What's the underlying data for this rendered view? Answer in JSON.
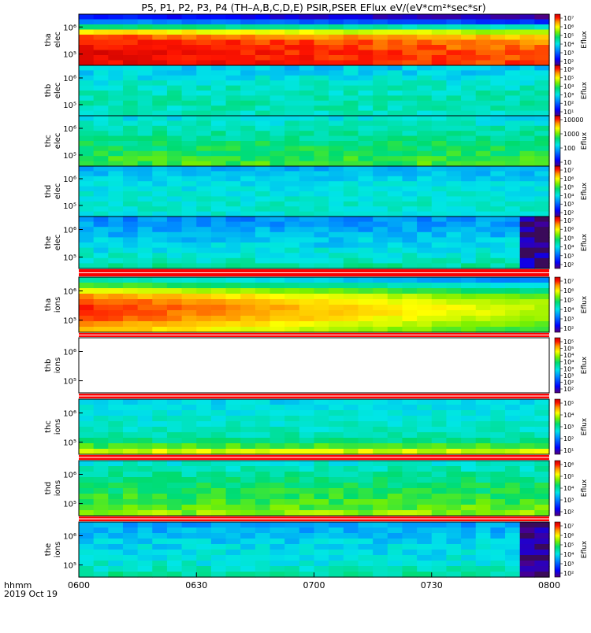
{
  "title": "P5, P1, P2, P3, P4 (TH–A,B,C,D,E) PSIR,PSER EFlux eV/(eV*cm²*sec*sr)",
  "xaxis": {
    "unit_label": "hhmm",
    "date_label": "2019 Oct 19",
    "ticks": [
      "0600",
      "0630",
      "0700",
      "0730",
      "0800"
    ],
    "range_min": [
      0,
      120
    ]
  },
  "colorbar_label": "Eflux",
  "colors": {
    "saturation_red": "#ff0000",
    "background": "#ffffff",
    "noise_purple": "#3a0a5a"
  },
  "chart_data": [
    {
      "type": "heatmap",
      "probe": "tha",
      "species": "elec",
      "ylabel_top": "tha",
      "ylabel_bottom": "elec",
      "yticks": [
        "10⁶",
        "10⁵"
      ],
      "cbar_ticks": [
        "10⁷",
        "10⁶",
        "10⁵",
        "10⁴",
        "10³",
        "10²"
      ],
      "profile": [
        0.15,
        0.3,
        0.55,
        0.78,
        0.9,
        0.94,
        0.95,
        0.96,
        0.96,
        0.96
      ],
      "trend": -0.12,
      "bottom_trend": 0.0,
      "noise": 0.03
    },
    {
      "type": "heatmap",
      "probe": "thb",
      "species": "elec",
      "ylabel_top": "thb",
      "ylabel_bottom": "elec",
      "yticks": [
        "10⁶",
        "10⁵"
      ],
      "cbar_ticks": [
        "10⁶",
        "10⁵",
        "10⁴",
        "10³",
        "10²",
        "10¹"
      ],
      "profile": [
        0.38,
        0.4,
        0.42,
        0.44,
        0.46,
        0.47,
        0.48,
        0.48,
        0.47,
        0.46
      ],
      "trend": 0.0,
      "bottom_trend": 0.0,
      "noise": 0.05
    },
    {
      "type": "heatmap",
      "probe": "thc",
      "species": "elec",
      "ylabel_top": "thc",
      "ylabel_bottom": "elec",
      "yticks": [
        "10⁶",
        "10⁵"
      ],
      "cbar_ticks": [
        "10000",
        "1000",
        "100",
        "10"
      ],
      "profile": [
        0.42,
        0.45,
        0.48,
        0.5,
        0.52,
        0.54,
        0.55,
        0.57,
        0.58,
        0.6
      ],
      "trend": 0.0,
      "bottom_trend": 0.0,
      "noise": 0.05
    },
    {
      "type": "heatmap",
      "probe": "thd",
      "species": "elec",
      "ylabel_top": "thd",
      "ylabel_bottom": "elec",
      "yticks": [
        "10⁶",
        "10⁵"
      ],
      "cbar_ticks": [
        "10⁷",
        "10⁶",
        "10⁵",
        "10⁴",
        "10³",
        "10²"
      ],
      "profile": [
        0.35,
        0.37,
        0.39,
        0.41,
        0.42,
        0.43,
        0.44,
        0.45,
        0.45,
        0.44
      ],
      "trend": 0.0,
      "bottom_trend": 0.0,
      "noise": 0.04
    },
    {
      "type": "heatmap",
      "probe": "the",
      "species": "elec",
      "ylabel_top": "the",
      "ylabel_bottom": "elec",
      "yticks": [
        "10⁶",
        "10⁵"
      ],
      "cbar_ticks": [
        "10⁷",
        "10⁶",
        "10⁵",
        "10⁴",
        "10³",
        "10²"
      ],
      "profile": [
        0.3,
        0.32,
        0.34,
        0.36,
        0.38,
        0.4,
        0.42,
        0.44,
        0.46,
        0.5
      ],
      "trend": 0.0,
      "bottom_trend": 0.0,
      "noise": 0.05,
      "noise_from_min": 111
    },
    {
      "type": "heatmap",
      "probe": "tha",
      "species": "ions",
      "ylabel_top": "tha",
      "ylabel_bottom": "ions",
      "yticks": [
        "10⁶",
        "10⁵"
      ],
      "cbar_ticks": [
        "10⁷",
        "10⁶",
        "10⁵",
        "10⁴",
        "10³",
        "10²"
      ],
      "profile": [
        0.5,
        0.62,
        0.75,
        0.85,
        0.9,
        0.92,
        0.92,
        0.9,
        0.86,
        0.82
      ],
      "trend": -0.22,
      "bottom_trend": -0.12,
      "noise": 0.02
    },
    {
      "type": "heatmap",
      "probe": "thb",
      "species": "ions",
      "ylabel_top": "thb",
      "ylabel_bottom": "ions",
      "yticks": [
        "10⁶",
        "10⁵"
      ],
      "cbar_ticks": [
        "10⁵",
        "10⁵",
        "10⁴",
        "10⁴",
        "10³",
        "10³",
        "10²",
        "10²"
      ],
      "empty": true
    },
    {
      "type": "heatmap",
      "probe": "thc",
      "species": "ions",
      "ylabel_top": "thc",
      "ylabel_bottom": "ions",
      "yticks": [
        "10⁶",
        "10⁵"
      ],
      "cbar_ticks": [
        "10⁵",
        "10⁴",
        "10³",
        "10²",
        "10¹"
      ],
      "profile": [
        0.4,
        0.42,
        0.43,
        0.44,
        0.45,
        0.46,
        0.48,
        0.52,
        0.6,
        0.72
      ],
      "trend": 0.0,
      "bottom_trend": 0.0,
      "noise": 0.04
    },
    {
      "type": "heatmap",
      "probe": "thd",
      "species": "ions",
      "ylabel_top": "thd",
      "ylabel_bottom": "ions",
      "yticks": [
        "10⁶",
        "10⁵"
      ],
      "cbar_ticks": [
        "10⁶",
        "10⁵",
        "10⁴",
        "10³",
        "10²"
      ],
      "profile": [
        0.44,
        0.47,
        0.5,
        0.52,
        0.54,
        0.56,
        0.58,
        0.6,
        0.62,
        0.66
      ],
      "trend": 0.0,
      "bottom_trend": 0.0,
      "noise": 0.05
    },
    {
      "type": "heatmap",
      "probe": "the",
      "species": "ions",
      "ylabel_top": "the",
      "ylabel_bottom": "ions",
      "yticks": [
        "10⁶",
        "10⁵"
      ],
      "cbar_ticks": [
        "10⁷",
        "10⁶",
        "10⁵",
        "10⁴",
        "10³",
        "10²"
      ],
      "profile": [
        0.33,
        0.35,
        0.37,
        0.39,
        0.4,
        0.41,
        0.42,
        0.44,
        0.46,
        0.5
      ],
      "trend": 0.0,
      "bottom_trend": 0.0,
      "noise": 0.05,
      "noise_from_min": 111
    }
  ]
}
